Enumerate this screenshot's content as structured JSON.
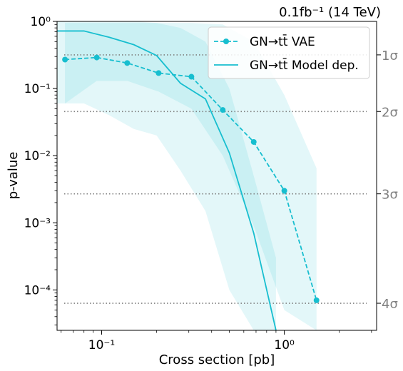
{
  "chart_data": {
    "type": "line",
    "title_right": "0.1fb⁻¹ (14 TeV)",
    "xlabel": "Cross section [pb]",
    "ylabel": "p-value",
    "x_scale": "log",
    "y_scale": "log",
    "xlim": [
      0.057,
      3.2
    ],
    "ylim": [
      2.5e-05,
      1.0
    ],
    "x_ticks": [
      {
        "value": 0.1,
        "label": "10⁻¹"
      },
      {
        "value": 1.0,
        "label": "10⁰"
      }
    ],
    "y_ticks": [
      {
        "value": 1.0,
        "label": "10⁰"
      },
      {
        "value": 0.1,
        "label": "10⁻¹"
      },
      {
        "value": 0.01,
        "label": "10⁻²"
      },
      {
        "value": 0.001,
        "label": "10⁻³"
      },
      {
        "value": 0.0001,
        "label": "10⁻⁴"
      }
    ],
    "sigma_lines": [
      {
        "label": "1σ",
        "p": 0.3173
      },
      {
        "label": "2σ",
        "p": 0.0455
      },
      {
        "label": "3σ",
        "p": 0.0027
      },
      {
        "label": "4σ",
        "p": 6.33e-05
      }
    ],
    "series": [
      {
        "name": "G_N→t t̄ VAE",
        "legend_label": "GN→tt̄ VAE",
        "style": "dashed-markers",
        "color": "#17becf",
        "x": [
          0.063,
          0.094,
          0.138,
          0.205,
          0.31,
          0.46,
          0.68,
          1.0,
          1.5
        ],
        "y": [
          0.27,
          0.29,
          0.24,
          0.17,
          0.15,
          0.048,
          0.016,
          0.003,
          7e-05
        ],
        "band_low": [
          0.06,
          0.13,
          0.13,
          0.09,
          0.05,
          0.01,
          0.0009,
          5e-05,
          2.5e-05
        ],
        "band_high": [
          0.95,
          0.95,
          0.95,
          0.95,
          0.95,
          0.9,
          0.5,
          0.08,
          0.0065
        ]
      },
      {
        "name": "G_N→t t̄ Model dep.",
        "legend_label": "GN→tt̄ Model dep.",
        "style": "solid",
        "color": "#17becf",
        "x": [
          0.057,
          0.08,
          0.11,
          0.15,
          0.2,
          0.27,
          0.37,
          0.5,
          0.68,
          0.9
        ],
        "y": [
          0.72,
          0.72,
          0.58,
          0.45,
          0.31,
          0.12,
          0.07,
          0.011,
          0.0007,
          2.5e-05
        ],
        "band_low": [
          0.06,
          0.06,
          0.04,
          0.025,
          0.02,
          0.006,
          0.0015,
          0.0001,
          2.5e-05,
          2.5e-05
        ],
        "band_high": [
          1.0,
          1.0,
          1.0,
          1.0,
          0.95,
          0.8,
          0.5,
          0.1,
          0.005,
          0.0003
        ]
      }
    ],
    "legend_position": "top-right",
    "colors": {
      "main": "#17becf",
      "band": "#17becf",
      "sigma_line": "#808080",
      "sigma_text": "#808080"
    }
  }
}
